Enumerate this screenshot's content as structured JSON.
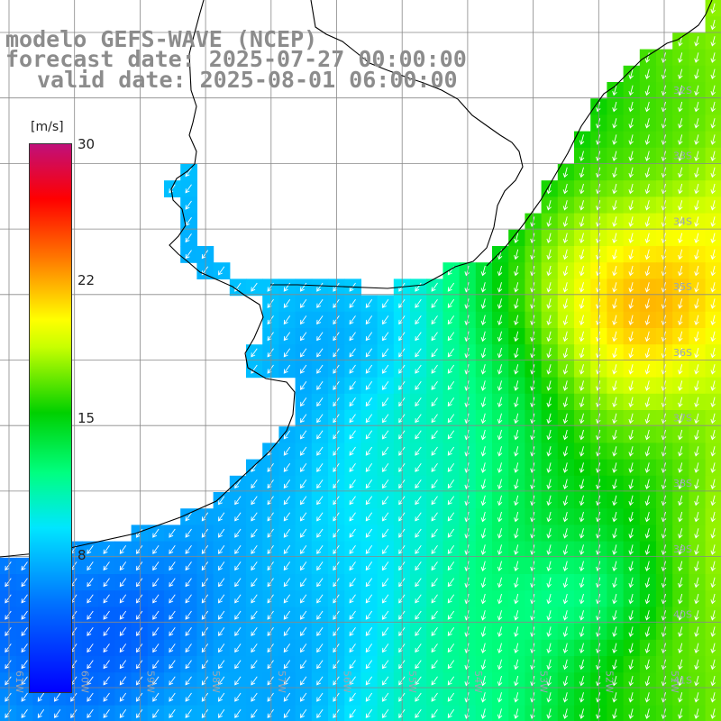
{
  "title": {
    "model": "modelo GEFS-WAVE (NCEP)",
    "forecast": "forecast date: 2025-07-27 00:00:00",
    "valid": "valid date: 2025-08-01 06:00:00"
  },
  "colorbar": {
    "units": "[m/s]",
    "min": 0,
    "max": 30,
    "ticks": [
      "30",
      "22",
      "15",
      "8"
    ]
  },
  "map": {
    "lat_labels": [
      "32S",
      "33S",
      "34S",
      "35S",
      "36S",
      "37S",
      "38S",
      "39S",
      "40S",
      "41S"
    ],
    "lon_labels": [
      "61W",
      "60W",
      "59W",
      "58W",
      "57W",
      "56W",
      "55W",
      "54W",
      "53W",
      "52W",
      "51W"
    ],
    "colors": {
      "land": "#ffffff",
      "grid": "#888888",
      "coast": "#000000",
      "arrows": "#ffffff"
    }
  }
}
